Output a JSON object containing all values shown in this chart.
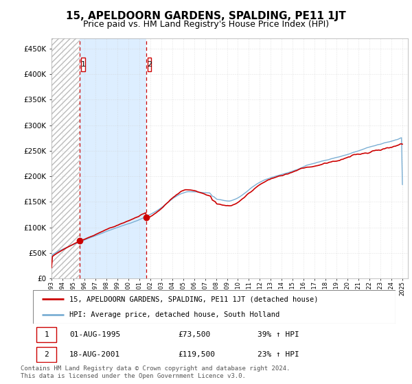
{
  "title": "15, APELDOORN GARDENS, SPALDING, PE11 1JT",
  "subtitle": "Price paid vs. HM Land Registry's House Price Index (HPI)",
  "ylim": [
    0,
    470000
  ],
  "yticks": [
    0,
    50000,
    100000,
    150000,
    200000,
    250000,
    300000,
    350000,
    400000,
    450000
  ],
  "ytick_labels": [
    "£0",
    "£50K",
    "£100K",
    "£150K",
    "£200K",
    "£250K",
    "£300K",
    "£350K",
    "£400K",
    "£450K"
  ],
  "x_start_year": 1993,
  "x_end_year": 2025,
  "sale1_x": 1995.583,
  "sale1_price": 73500,
  "sale2_x": 2001.632,
  "sale2_price": 119500,
  "legend_entry1": "15, APELDOORN GARDENS, SPALDING, PE11 1JT (detached house)",
  "legend_entry2": "HPI: Average price, detached house, South Holland",
  "table_row1": [
    "1",
    "01-AUG-1995",
    "£73,500",
    "39% ↑ HPI"
  ],
  "table_row2": [
    "2",
    "18-AUG-2001",
    "£119,500",
    "23% ↑ HPI"
  ],
  "footnote": "Contains HM Land Registry data © Crown copyright and database right 2024.\nThis data is licensed under the Open Government Licence v3.0.",
  "line_color_red": "#cc0000",
  "line_color_blue": "#7bafd4",
  "fill_between_color": "#ddeeff",
  "hatch_color": "#cccccc",
  "marker_color": "#cc0000",
  "title_fontsize": 11,
  "subtitle_fontsize": 9,
  "tick_fontsize": 7.5,
  "label_fontsize": 8
}
